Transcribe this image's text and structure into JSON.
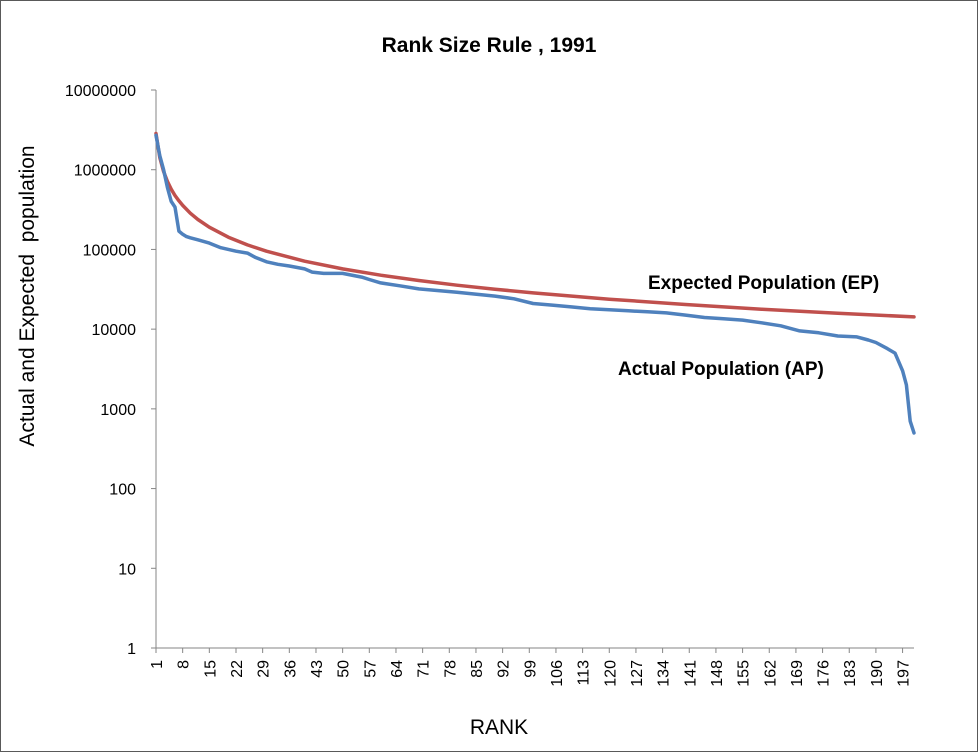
{
  "chart_data": {
    "type": "line",
    "title": "Rank Size Rule , 1991",
    "xlabel": "RANK",
    "ylabel": "Actual and Expected  population",
    "y_scale": "log",
    "ylim": [
      1,
      10000000
    ],
    "y_ticks": [
      "1",
      "10",
      "100",
      "1000",
      "10000",
      "100000",
      "1000000",
      "10000000"
    ],
    "x_ticks": [
      1,
      8,
      15,
      22,
      29,
      36,
      43,
      50,
      57,
      64,
      71,
      78,
      85,
      92,
      99,
      106,
      113,
      120,
      127,
      134,
      141,
      148,
      155,
      162,
      169,
      176,
      183,
      190,
      197
    ],
    "xlim": [
      1,
      200
    ],
    "grid": false,
    "legend": "none",
    "annotations": [
      "Expected Population (EP)",
      "Actual Population (AP)"
    ],
    "series": [
      {
        "name": "Expected Population (EP)",
        "color": "#C0504D",
        "formula": "2850000 / rank",
        "x": [
          1,
          2,
          3,
          4,
          5,
          6,
          7,
          8,
          10,
          12,
          15,
          20,
          25,
          30,
          40,
          50,
          60,
          70,
          80,
          90,
          100,
          120,
          140,
          160,
          180,
          200
        ],
        "values": [
          2850000,
          1425000,
          950000,
          712500,
          570000,
          475000,
          407143,
          356250,
          285000,
          237500,
          190000,
          142500,
          114000,
          95000,
          71250,
          57000,
          47500,
          40714,
          35625,
          31667,
          28500,
          23750,
          20357,
          17813,
          15833,
          14250
        ]
      },
      {
        "name": "Actual Population (AP)",
        "color": "#4F81BD",
        "x": [
          1,
          2,
          3,
          4,
          5,
          6,
          7,
          8,
          9,
          10,
          12,
          15,
          18,
          20,
          22,
          25,
          27,
          30,
          33,
          36,
          40,
          42,
          45,
          50,
          55,
          57,
          60,
          65,
          70,
          80,
          90,
          95,
          100,
          105,
          110,
          115,
          120,
          125,
          130,
          135,
          140,
          145,
          150,
          155,
          160,
          165,
          170,
          175,
          180,
          185,
          188,
          190,
          193,
          195,
          197,
          198,
          199,
          200
        ],
        "values": [
          2700000,
          1500000,
          1000000,
          600000,
          400000,
          340000,
          170000,
          155000,
          145000,
          140000,
          132000,
          120000,
          105000,
          100000,
          95000,
          90000,
          80000,
          70000,
          65000,
          62000,
          57000,
          52000,
          50000,
          50000,
          45000,
          42000,
          38000,
          35000,
          32000,
          29000,
          26000,
          24000,
          21000,
          20000,
          19000,
          18000,
          17500,
          17000,
          16500,
          16000,
          15000,
          14000,
          13500,
          13000,
          12000,
          11000,
          9500,
          9000,
          8200,
          8000,
          7300,
          6800,
          5700,
          5000,
          3000,
          2000,
          700,
          500
        ]
      }
    ]
  }
}
